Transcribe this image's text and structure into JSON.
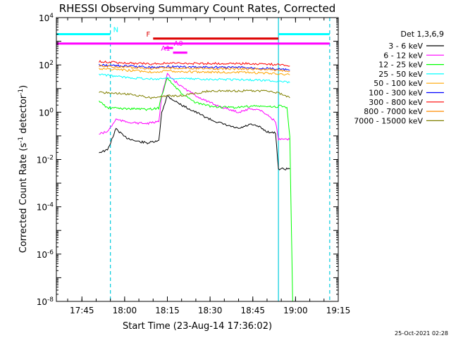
{
  "chart_data": {
    "type": "line",
    "title": "RHESSI Observing Summary Count Rates, Corrected",
    "xlabel": "Start Time (23-Aug-14 17:36:02)",
    "ylabel_main": "Corrected Count Rate (s",
    "ylabel_sup1": "-1",
    "ylabel_mid": " detector",
    "ylabel_sup2": "-1",
    "ylabel_end": ")",
    "y_scale": "log",
    "ylim": [
      1e-08,
      10000
    ],
    "xlim": [
      "17:36:02",
      "19:15:00"
    ],
    "x_ticks": [
      "17:45",
      "18:00",
      "18:15",
      "18:30",
      "18:45",
      "19:00",
      "19:15"
    ],
    "y_ticks": [
      {
        "mant": "10",
        "exp": "4"
      },
      {
        "mant": "10",
        "exp": "2"
      },
      {
        "mant": "10",
        "exp": "0"
      },
      {
        "mant": "10",
        "exp": "-2"
      },
      {
        "mant": "10",
        "exp": "-4"
      },
      {
        "mant": "10",
        "exp": "-6"
      },
      {
        "mant": "10",
        "exp": "-8"
      }
    ],
    "legend_title": "Det 1,3,6,9",
    "legend_placement": "right",
    "series": [
      {
        "name": "3 - 6 keV",
        "color": "#000000",
        "x": [
          "17:51",
          "17:54",
          "17:57",
          "18:00",
          "18:04",
          "18:08",
          "18:12",
          "18:13",
          "18:15",
          "18:16",
          "18:20",
          "18:25",
          "18:30",
          "18:35",
          "18:40",
          "18:44",
          "18:47",
          "18:50",
          "18:53",
          "18:54",
          "18:58"
        ],
        "y": [
          0.02,
          0.025,
          0.2,
          0.09,
          0.06,
          0.05,
          0.06,
          1.0,
          5.0,
          4.0,
          2.0,
          1.0,
          0.5,
          0.3,
          0.2,
          0.3,
          0.25,
          0.15,
          0.13,
          0.004,
          0.004
        ]
      },
      {
        "name": "6 - 12 keV",
        "color": "#ff00ff",
        "x": [
          "17:51",
          "17:54",
          "17:57",
          "18:00",
          "18:04",
          "18:08",
          "18:12",
          "18:13",
          "18:15",
          "18:16",
          "18:20",
          "18:25",
          "18:30",
          "18:35",
          "18:40",
          "18:44",
          "18:47",
          "18:50",
          "18:53",
          "18:54",
          "18:58"
        ],
        "y": [
          0.12,
          0.15,
          0.5,
          0.4,
          0.35,
          0.33,
          0.4,
          5.0,
          40,
          30,
          12,
          5,
          2.5,
          1.5,
          1.0,
          1.4,
          1.3,
          0.8,
          0.4,
          0.07,
          0.07
        ]
      },
      {
        "name": "12 - 25 keV",
        "color": "#00ff00",
        "x": [
          "17:51",
          "17:54",
          "17:57",
          "18:00",
          "18:04",
          "18:08",
          "18:12",
          "18:13",
          "18:15",
          "18:16",
          "18:20",
          "18:25",
          "18:30",
          "18:35",
          "18:40",
          "18:44",
          "18:47",
          "18:50",
          "18:53",
          "18:55",
          "18:57",
          "18:58",
          "18:59"
        ],
        "y": [
          3,
          1.5,
          1.5,
          1.4,
          1.4,
          1.3,
          1.5,
          5,
          30,
          20,
          6,
          2.5,
          1.8,
          1.6,
          1.6,
          1.8,
          1.8,
          1.7,
          1.7,
          1.9,
          1.5,
          0.1,
          1e-08
        ]
      },
      {
        "name": "25 - 50 keV",
        "color": "#00ffff",
        "x": [
          "17:51",
          "18:00",
          "18:10",
          "18:15",
          "18:20",
          "18:30",
          "18:40",
          "18:50",
          "18:55",
          "18:58"
        ],
        "y": [
          40,
          30,
          25,
          28,
          26,
          25,
          24,
          22,
          20,
          18
        ]
      },
      {
        "name": "50 - 100 keV",
        "color": "#ffa500",
        "x": [
          "17:51",
          "18:00",
          "18:10",
          "18:15",
          "18:20",
          "18:30",
          "18:40",
          "18:50",
          "18:55",
          "18:58"
        ],
        "y": [
          70,
          60,
          50,
          55,
          52,
          50,
          48,
          45,
          42,
          38
        ]
      },
      {
        "name": "100 - 300 keV",
        "color": "#0000ff",
        "x": [
          "17:51",
          "18:00",
          "18:10",
          "18:15",
          "18:20",
          "18:30",
          "18:40",
          "18:50",
          "18:55",
          "18:58"
        ],
        "y": [
          100,
          90,
          80,
          85,
          82,
          80,
          78,
          72,
          65,
          60
        ]
      },
      {
        "name": "300 - 800 keV",
        "color": "#ff0000",
        "x": [
          "17:51",
          "18:00",
          "18:10",
          "18:15",
          "18:20",
          "18:30",
          "18:40",
          "18:50",
          "18:55",
          "18:58"
        ],
        "y": [
          140,
          120,
          110,
          120,
          115,
          115,
          115,
          110,
          100,
          90
        ]
      },
      {
        "name": "800 - 7000 keV",
        "color": "#ff8c00",
        "x": [
          "17:51",
          "18:00",
          "18:10",
          "18:15",
          "18:20",
          "18:30",
          "18:40",
          "18:50",
          "18:55",
          "18:58"
        ],
        "y": [
          90,
          80,
          70,
          75,
          72,
          70,
          68,
          65,
          60,
          55
        ]
      },
      {
        "name": "7000 - 15000 keV",
        "color": "#808000",
        "x": [
          "17:51",
          "18:00",
          "18:10",
          "18:15",
          "18:20",
          "18:30",
          "18:40",
          "18:50",
          "18:55",
          "18:58"
        ],
        "y": [
          7,
          6,
          4,
          5,
          5,
          8,
          8,
          8,
          6,
          4
        ]
      }
    ],
    "annotations": [
      {
        "label": "N",
        "color": "#00ffff",
        "value": 2000,
        "spans": [
          [
            "17:36:02",
            "17:55"
          ],
          [
            "18:54",
            "19:12"
          ]
        ]
      },
      {
        "label": "F",
        "color": "#dd0000",
        "value": 1300,
        "spans": [
          [
            "18:10",
            "18:54"
          ]
        ]
      },
      {
        "label": "",
        "color": "#ff00ff",
        "value": 800,
        "spans": [
          [
            "17:36:02",
            "19:12"
          ]
        ]
      },
      {
        "label": "A0",
        "color": "#ff00ff",
        "value": 520,
        "spans": [
          [
            "18:14",
            "18:17"
          ]
        ]
      },
      {
        "label": "A1",
        "color": "#ff00ff",
        "value": 330,
        "spans": [
          [
            "18:17",
            "18:22"
          ]
        ]
      }
    ],
    "vertical_lines": [
      {
        "x": "17:55",
        "color": "#00ccdd",
        "style": "dashed"
      },
      {
        "x": "18:54",
        "color": "#00ccdd",
        "style": "solid"
      },
      {
        "x": "19:12",
        "color": "#00ccdd",
        "style": "dashed"
      }
    ]
  },
  "footer_timestamp": "25-Oct-2021 02:28"
}
